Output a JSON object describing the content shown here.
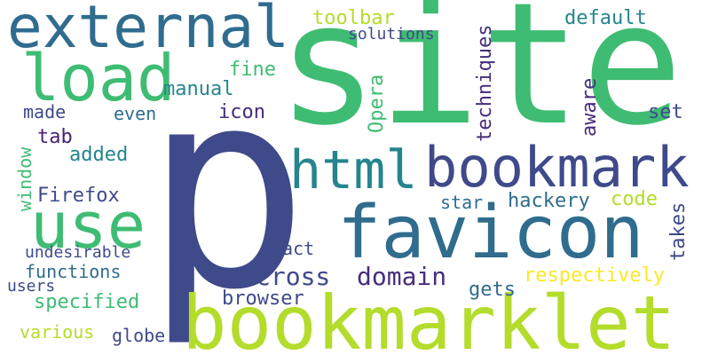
{
  "words": {
    "site": "site",
    "p": "p",
    "bookmarklet": "bookmarklet",
    "favicon": "favicon",
    "bookmark": "bookmark",
    "external": "external",
    "load": "load",
    "use": "use",
    "html": "html",
    "cross": "cross",
    "domain": "domain",
    "toolbar": "toolbar",
    "solutions": "solutions",
    "default": "default",
    "fine": "fine",
    "manual": "manual",
    "made": "made",
    "even": "even",
    "icon": "icon",
    "set": "set",
    "tab": "tab",
    "added": "added",
    "firefox": "Firefox",
    "star": "star",
    "hackery": "hackery",
    "code": "code",
    "undesirable": "undesirable",
    "fact": "fact",
    "functions": "functions",
    "users": "users",
    "specified": "specified",
    "gets": "gets",
    "respectively": "respectively",
    "browser": "browser",
    "various": "various",
    "globe": "globe",
    "opera": "Opera",
    "techniques": "techniques",
    "aware": "aware",
    "window": "window",
    "takes": "takes"
  },
  "palette": {
    "navy": "#3f4a8a",
    "blue": "#2f6c8e",
    "teal": "#25858e",
    "green": "#3fbc73",
    "lime": "#b3dc2b",
    "purple": "#472d7b",
    "dark": "#482374"
  }
}
